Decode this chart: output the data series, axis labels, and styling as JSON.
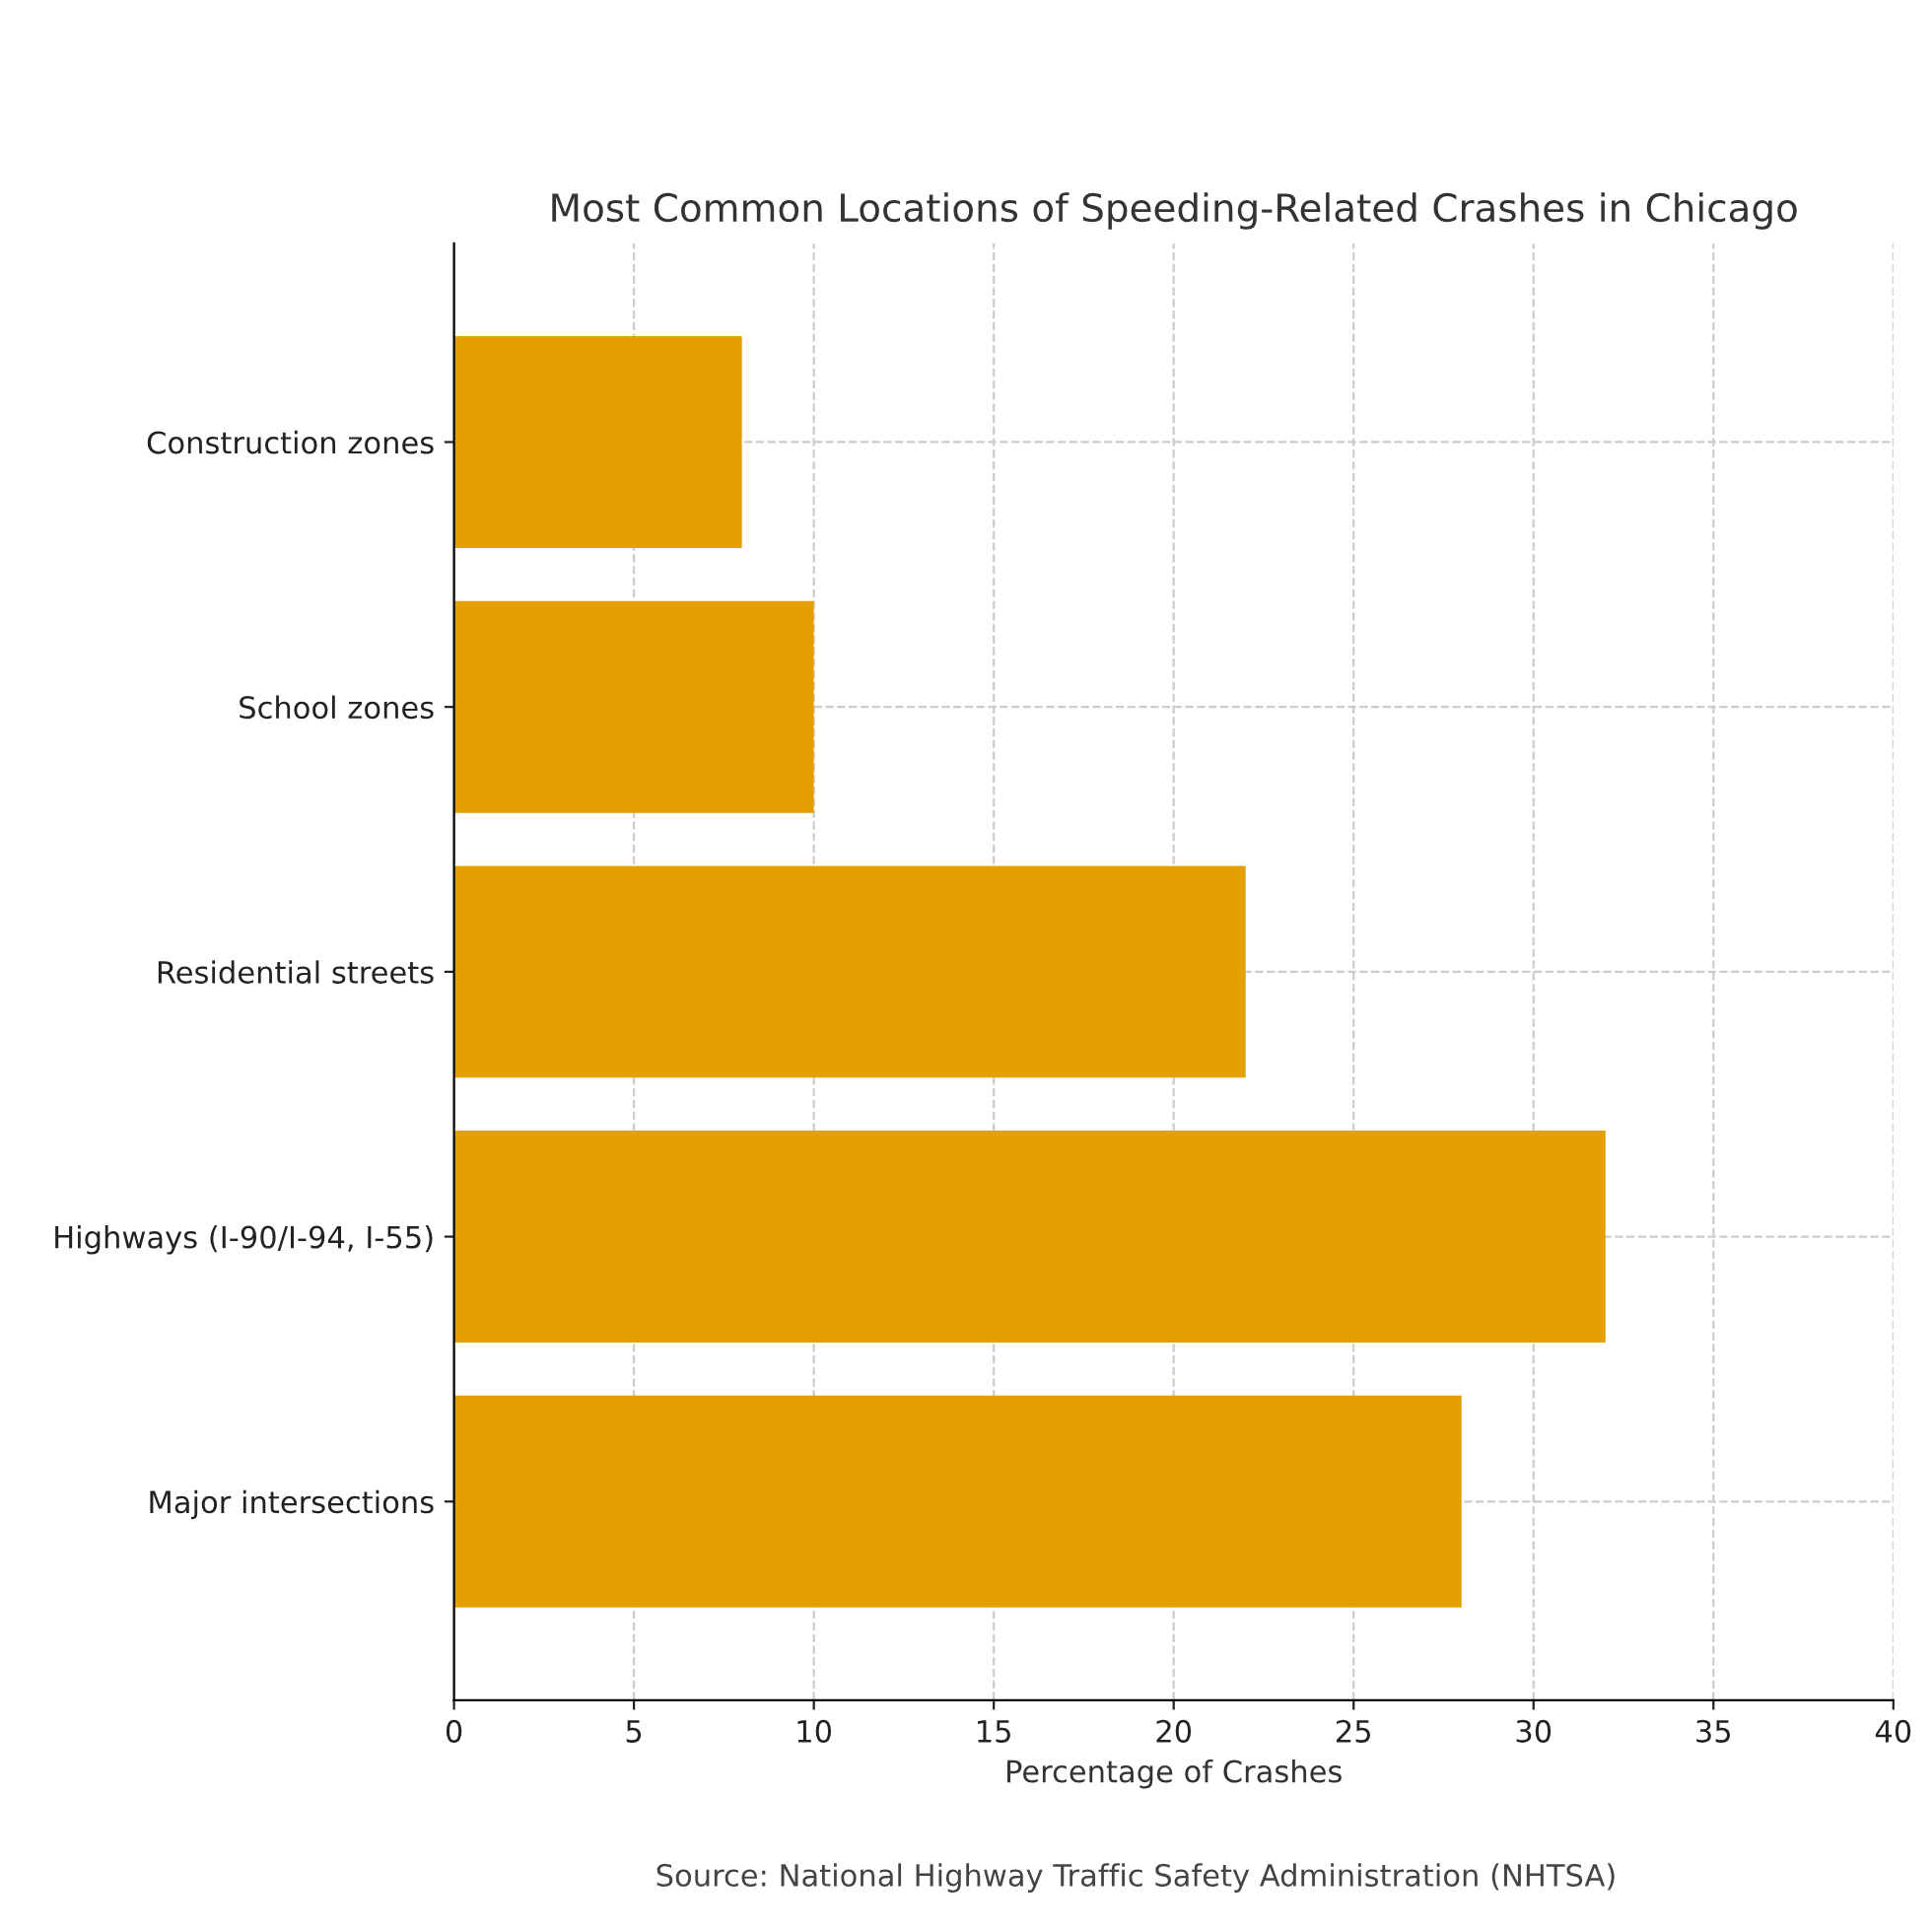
{
  "chart_data": {
    "type": "bar",
    "orientation": "horizontal",
    "title": "Most Common Locations of Speeding-Related Crashes in Chicago",
    "xlabel": "Percentage of Crashes",
    "categories": [
      "Construction zones",
      "School zones",
      "Residential streets",
      "Highways (I-90/I-94, I-55)",
      "Major intersections"
    ],
    "values": [
      8,
      10,
      22,
      32,
      28
    ],
    "color": "#e3a000",
    "xlim": [
      0,
      40
    ],
    "xticks": [
      0,
      5,
      10,
      15,
      20,
      25,
      30,
      35,
      40
    ],
    "grid": true,
    "legend": false,
    "annotations": [
      "Source: National Highway Traffic Safety Administration (NHTSA)"
    ]
  }
}
